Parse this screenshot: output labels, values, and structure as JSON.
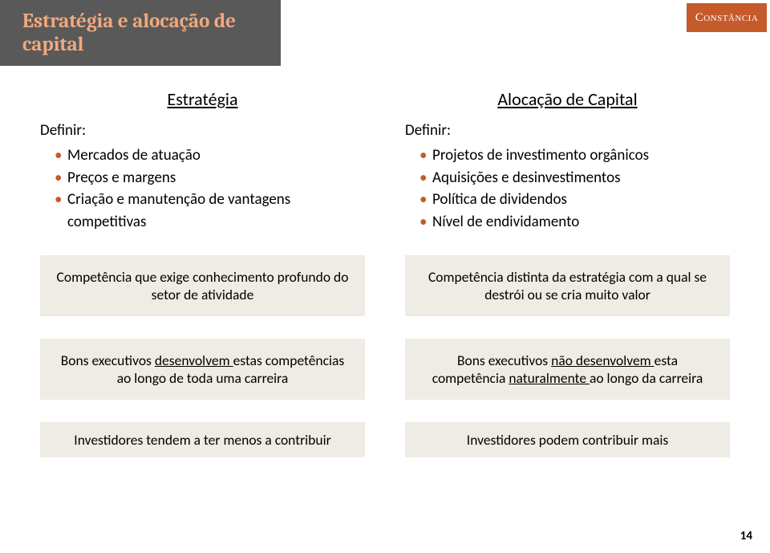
{
  "colors": {
    "header_bg": "#595959",
    "accent_orange": "#c55a2b",
    "title_peach": "#f2a97e",
    "box_bg": "#eeece4",
    "page_bg": "#ffffff",
    "text": "#000000",
    "logo_text": "#ffffff"
  },
  "header": {
    "title": "Estratégia e alocação de capital"
  },
  "logo": {
    "text": "Constância"
  },
  "left": {
    "heading": "Estratégia",
    "definir": "Definir:",
    "items": [
      "Mercados de atuação",
      "Preços e margens",
      "Criação e manutenção de vantagens competitivas"
    ]
  },
  "right": {
    "heading": "Alocação de Capital",
    "definir": "Definir:",
    "items": [
      "Projetos de investimento orgânicos",
      "Aquisições e desinvestimentos",
      "Política de dividendos",
      "Nível de endividamento"
    ]
  },
  "row1": {
    "left": "Competência que exige conhecimento profundo do setor de atividade",
    "right": "Competência distinta da estratégia com a qual se destrói ou se cria muito valor"
  },
  "row2": {
    "left_pre": "Bons executivos ",
    "left_ud": "desenvolvem ",
    "left_post": "estas competências ao longo de toda uma carreira",
    "right_pre": "Bons executivos ",
    "right_ud1": "não desenvolvem ",
    "right_mid": "esta competência ",
    "right_ud2": "naturalmente ",
    "right_post": "ao longo da carreira"
  },
  "row3": {
    "left": "Investidores tendem a ter menos a contribuir",
    "right": "Investidores podem contribuir mais"
  },
  "page_number": "14"
}
